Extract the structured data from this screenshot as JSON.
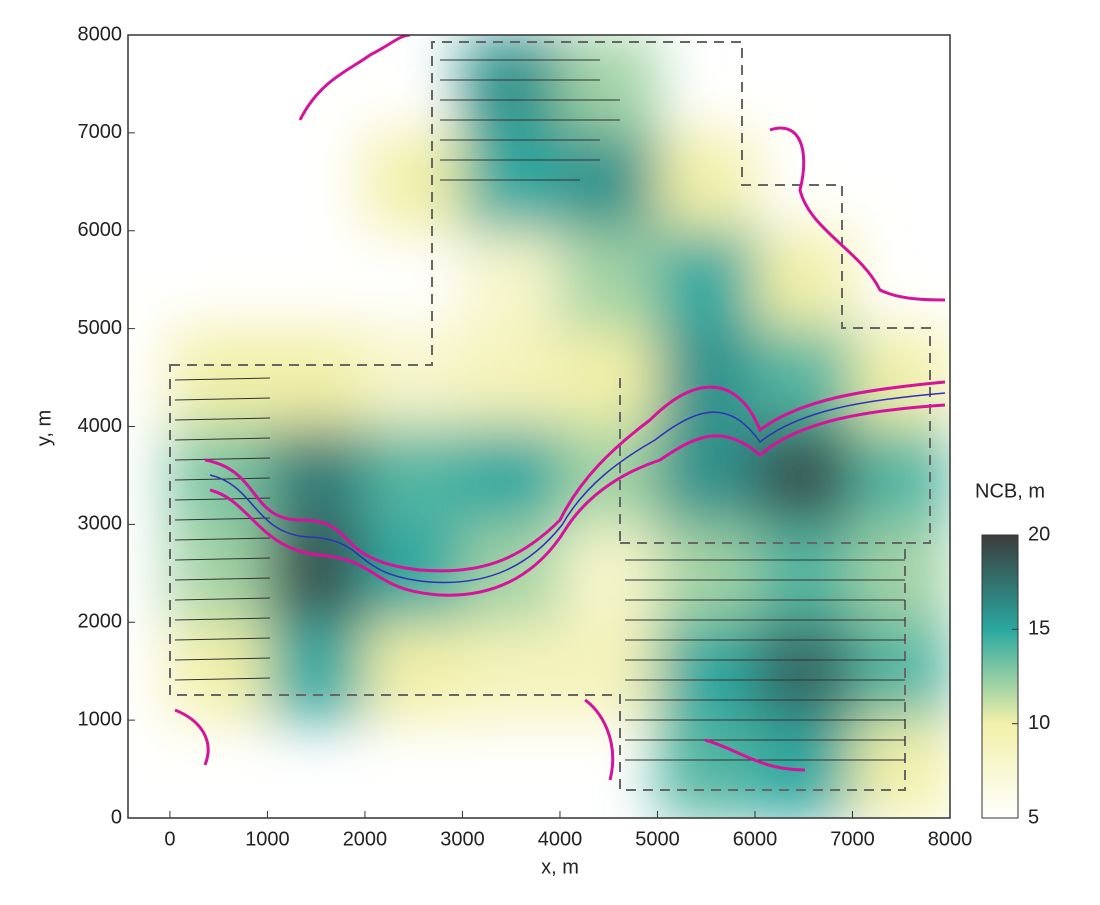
{
  "chart_data": {
    "type": "heatmap",
    "xlabel": "x, m",
    "ylabel": "y, m",
    "colorbar_label": "NCB, m",
    "xlim": [
      -430,
      8000
    ],
    "ylim": [
      0,
      8000
    ],
    "xticks": [
      0,
      1000,
      2000,
      3000,
      4000,
      5000,
      6000,
      7000,
      8000
    ],
    "yticks": [
      0,
      1000,
      2000,
      3000,
      4000,
      5000,
      6000,
      7000,
      8000
    ],
    "clim": [
      5,
      20
    ],
    "cticks": [
      5,
      10,
      15,
      20
    ],
    "colormap": [
      "#ffffff",
      "#f2f0a8",
      "#2aa8a0",
      "#3c3c3c"
    ],
    "x": [
      500,
      1500,
      2500,
      3500,
      4500,
      5500,
      6500,
      7500
    ],
    "y": [
      7500,
      6500,
      5500,
      4500,
      3500,
      2500,
      1500,
      500
    ],
    "z": [
      [
        null,
        null,
        null,
        16,
        12,
        null,
        null,
        null
      ],
      [
        null,
        null,
        10,
        15,
        16,
        10,
        null,
        null
      ],
      [
        null,
        null,
        null,
        8,
        12,
        15,
        10,
        null
      ],
      [
        10,
        10,
        8,
        9,
        10,
        16,
        14,
        10
      ],
      [
        13,
        17,
        14,
        15,
        12,
        16,
        19,
        14
      ],
      [
        12,
        19,
        15,
        12,
        8,
        12,
        14,
        12
      ],
      [
        10,
        15,
        10,
        9,
        9,
        15,
        18,
        14
      ],
      [
        null,
        null,
        null,
        null,
        null,
        14,
        15,
        10
      ]
    ]
  }
}
